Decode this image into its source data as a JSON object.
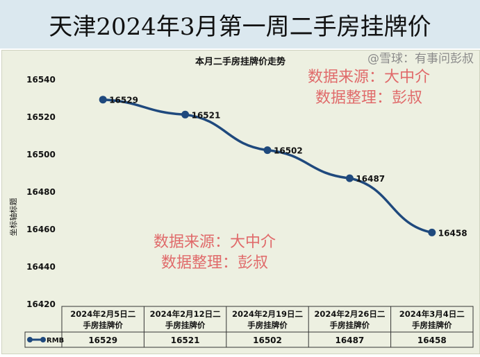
{
  "header": {
    "title": "天津2024年3月第一周二手房挂牌价"
  },
  "chart_data": {
    "type": "line",
    "title": "本月二手房挂牌价走势",
    "ylabel": "坐标轴标题",
    "xlabel": "",
    "ylim": [
      16420,
      16540
    ],
    "yticks": [
      16420,
      16440,
      16460,
      16480,
      16500,
      16520,
      16540
    ],
    "categories": [
      "2024年2月5日二手房挂牌价",
      "2024年2月12日二手房挂牌价",
      "2024年2月19日二手房挂牌价",
      "2024年2月26日二手房挂牌价",
      "2024年3月4日二手房挂牌价"
    ],
    "series": [
      {
        "name": "RMB",
        "values": [
          16529,
          16521,
          16502,
          16487,
          16458
        ],
        "color": "#1f497d"
      }
    ],
    "grid": false,
    "legend": "data-table"
  },
  "watermarks": {
    "line1": "数据来源：大中介",
    "line2": "数据整理：彭叔",
    "site": "@雪球：有事问彭叔"
  }
}
